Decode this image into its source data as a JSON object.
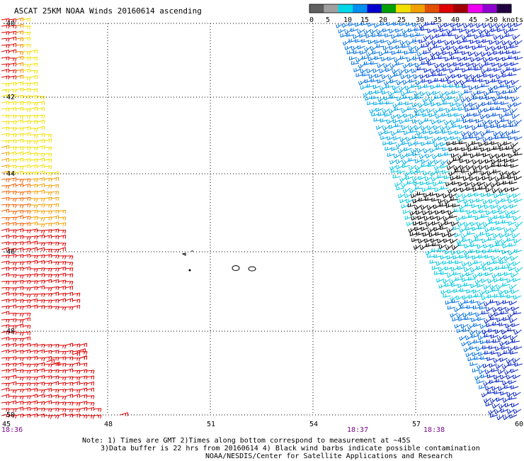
{
  "title": "ASCAT 25KM NOAA Winds 20160614 ascending",
  "legend": {
    "ticks": [
      "0",
      "5",
      "10",
      "15",
      "20",
      "25",
      "30",
      "35",
      "40",
      "45",
      ">50 knots"
    ],
    "colors": [
      "#606060",
      "#a0a0a0",
      "#00d8e8",
      "#0090f0",
      "#0000d0",
      "#00a000",
      "#f0e000",
      "#f0a000",
      "#e05000",
      "#e00000",
      "#a00000",
      "#f000f0",
      "#9000d0",
      "#200040"
    ]
  },
  "axes": {
    "lon_labels": [
      "45",
      "48",
      "51",
      "54",
      "57",
      "60"
    ],
    "lat_labels": [
      "-40",
      "-42",
      "-44",
      "-46",
      "-48",
      "-50"
    ]
  },
  "times": [
    "18:36",
    "18:37",
    "18:38"
  ],
  "notes": [
    "Note: 1) Times are GMT 2)Times along bottom correspond to measurement at ~45S",
    "3)Data buffer is 22 hrs from 20160614 4) Black wind barbs indicate possible contamination",
    "NOAA/NESDIS/Center for Satellite Applications and Research"
  ],
  "swaths": {
    "west": "warm colored barbs (yellow/orange/red, 20-35 knots)",
    "east": "cool colored barbs (cyan/blue, 5-15 knots) with black barbs"
  }
}
